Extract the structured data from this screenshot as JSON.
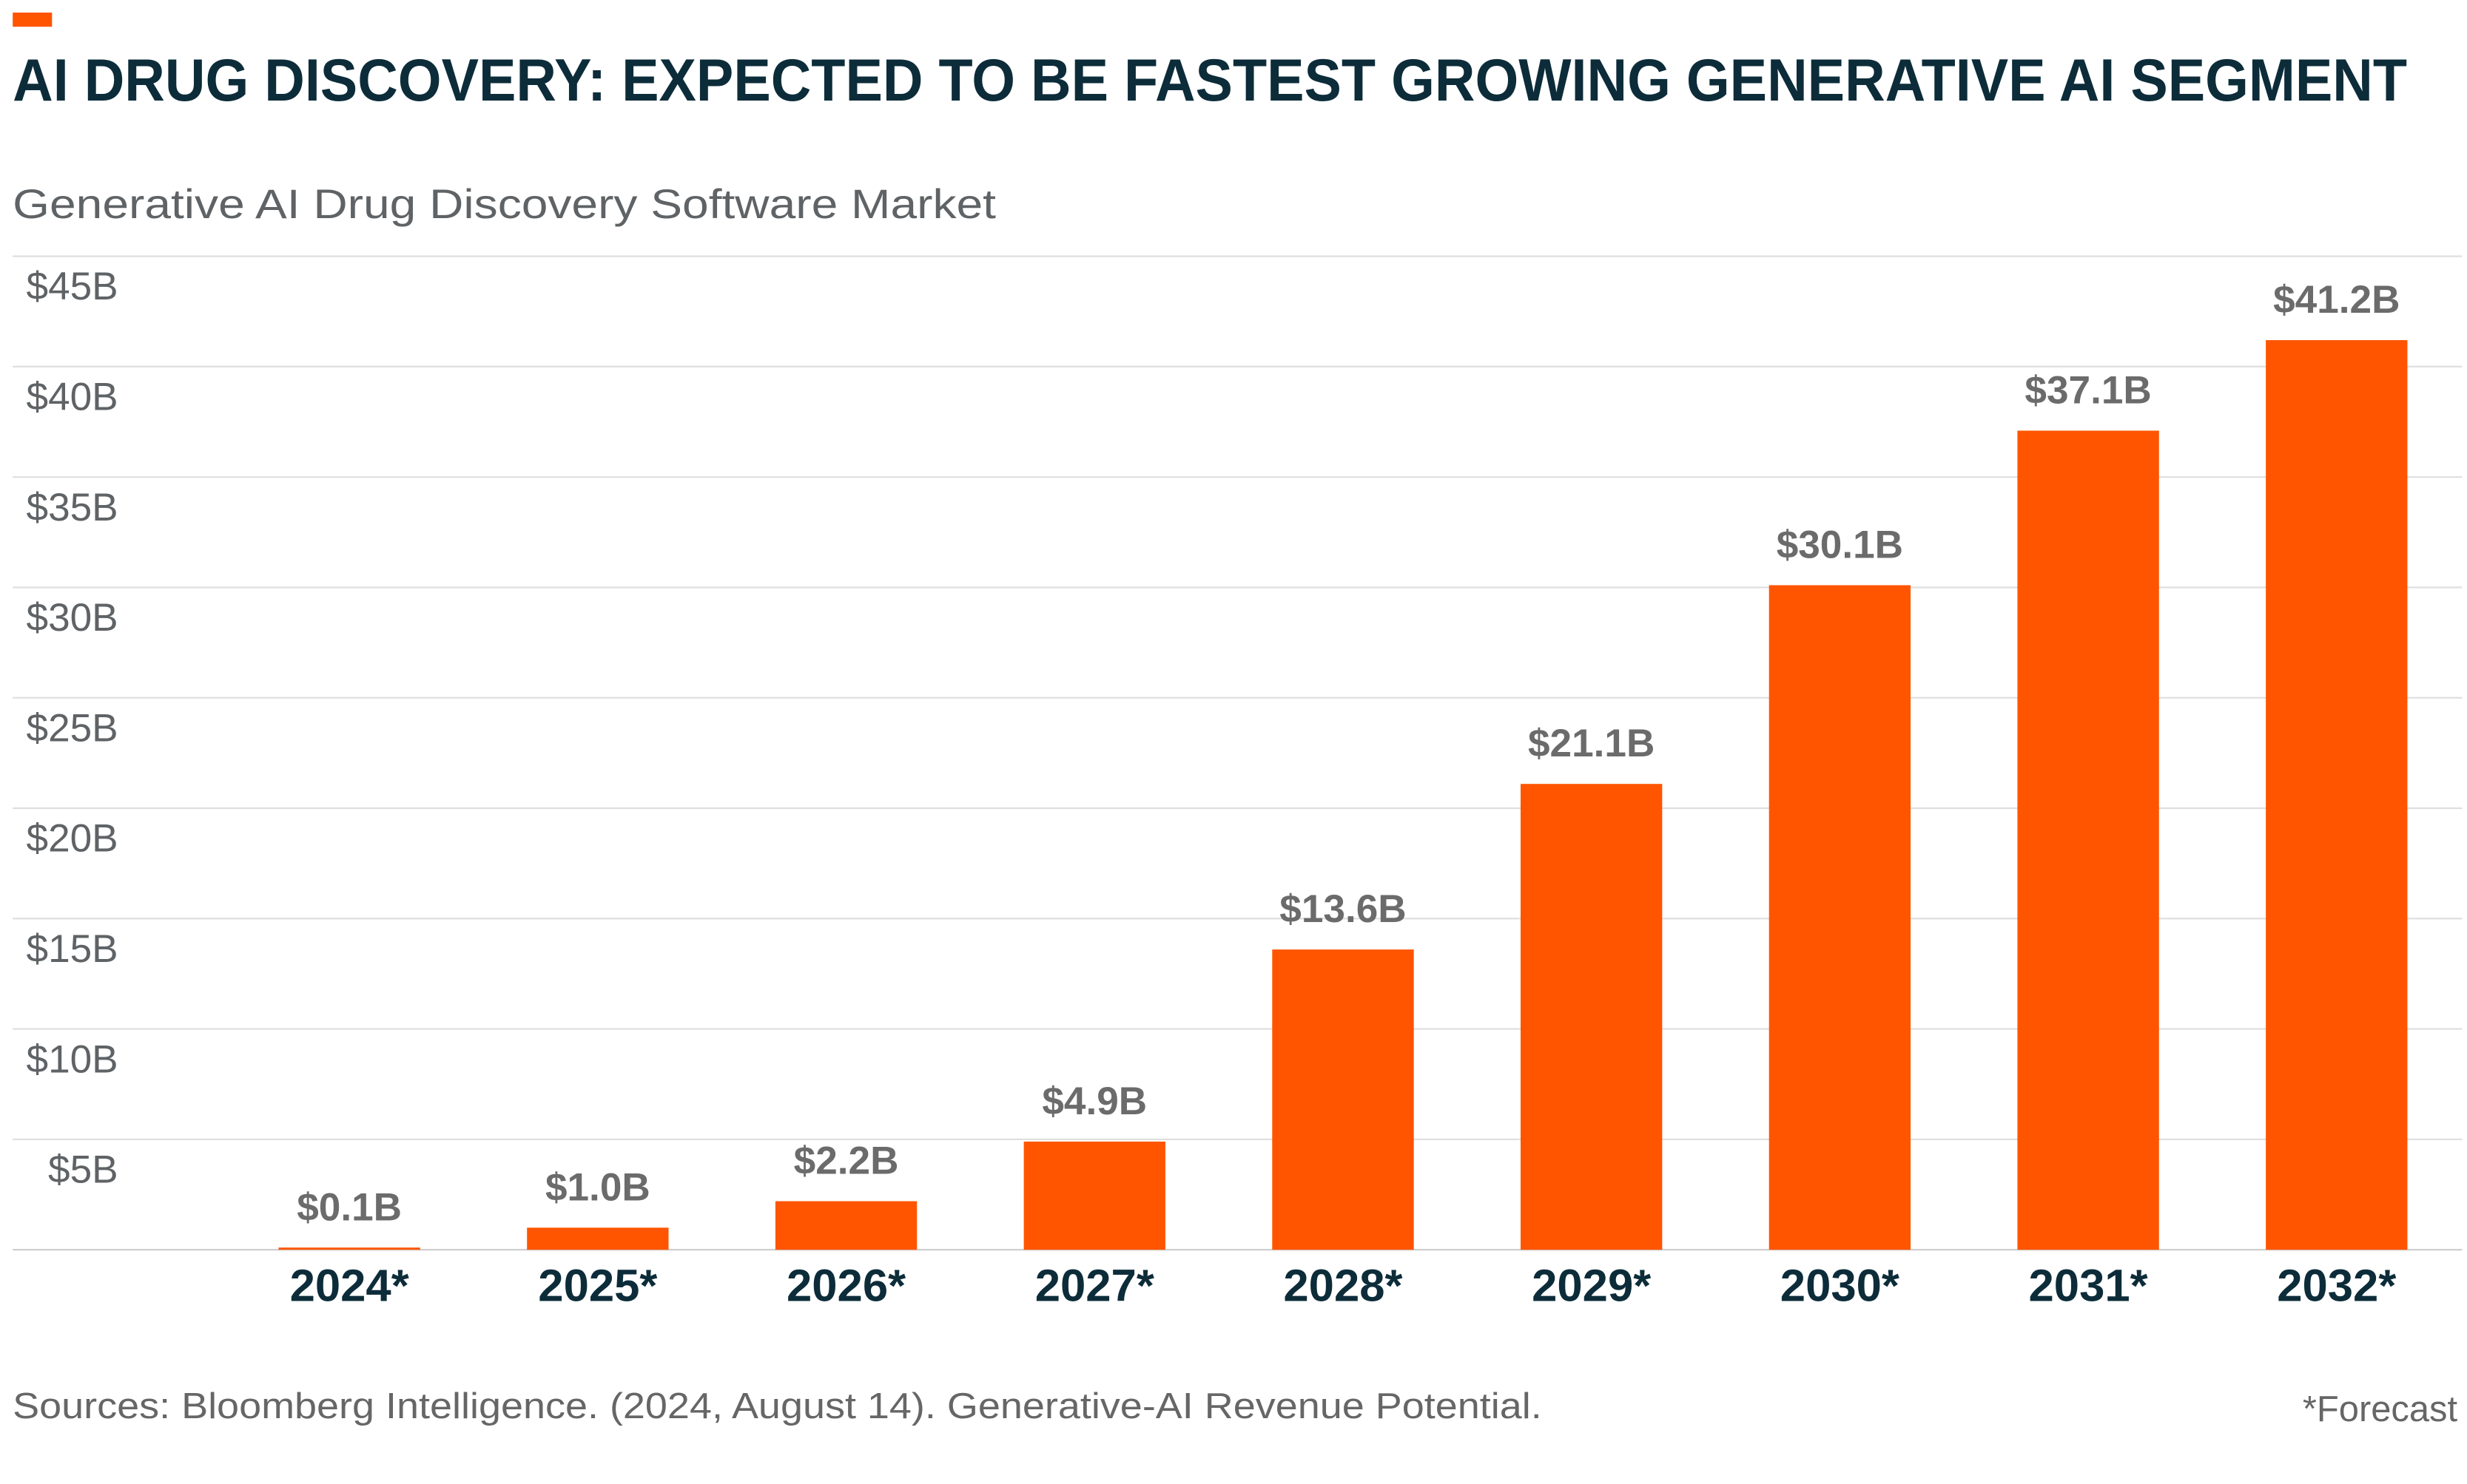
{
  "chart_data": {
    "type": "bar",
    "title": "AI DRUG DISCOVERY: EXPECTED TO BE FASTEST GROWING GENERATIVE AI SEGMENT",
    "subtitle": "Generative AI Drug Discovery Software Market",
    "categories": [
      "2024*",
      "2025*",
      "2026*",
      "2027*",
      "2028*",
      "2029*",
      "2030*",
      "2031*",
      "2032*"
    ],
    "values": [
      0.1,
      1.0,
      2.2,
      4.9,
      13.6,
      21.1,
      30.1,
      37.1,
      41.2
    ],
    "value_labels": [
      "$0.1B",
      "$1.0B",
      "$2.2B",
      "$4.9B",
      "$13.6B",
      "$21.1B",
      "$30.1B",
      "$37.1B",
      "$41.2B"
    ],
    "color": "#ff5500",
    "ylim": [
      0,
      45
    ],
    "yticks": [
      {
        "value": 5,
        "label": "$5B"
      },
      {
        "value": 10,
        "label": "$10B"
      },
      {
        "value": 15,
        "label": "$15B"
      },
      {
        "value": 20,
        "label": "$20B"
      },
      {
        "value": 25,
        "label": "$25B"
      },
      {
        "value": 30,
        "label": "$30B"
      },
      {
        "value": 35,
        "label": "$35B"
      },
      {
        "value": 40,
        "label": "$40B"
      },
      {
        "value": 45,
        "label": "$45B"
      }
    ],
    "grid": true,
    "source": "Sources: Bloomberg Intelligence. (2024, August 14). Generative-AI Revenue Potential.",
    "note": "*Forecast"
  }
}
